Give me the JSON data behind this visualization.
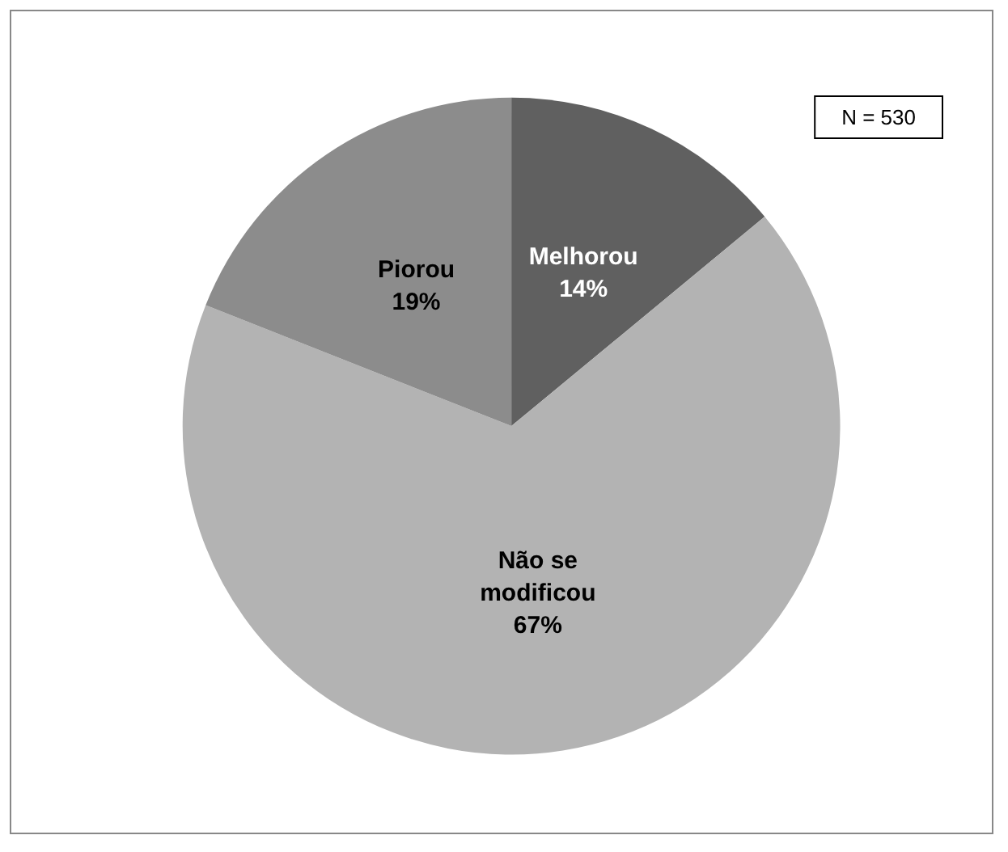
{
  "chart_data": {
    "type": "pie",
    "categories": [
      "Melhorou",
      "Não se modificou",
      "Piorou"
    ],
    "values": [
      14,
      67,
      19
    ],
    "colors": [
      "#606060",
      "#b3b3b3",
      "#8c8c8c"
    ],
    "annotations": [
      "N = 530"
    ],
    "legend": false,
    "value_labels": [
      "14%",
      "67%",
      "19%"
    ]
  }
}
